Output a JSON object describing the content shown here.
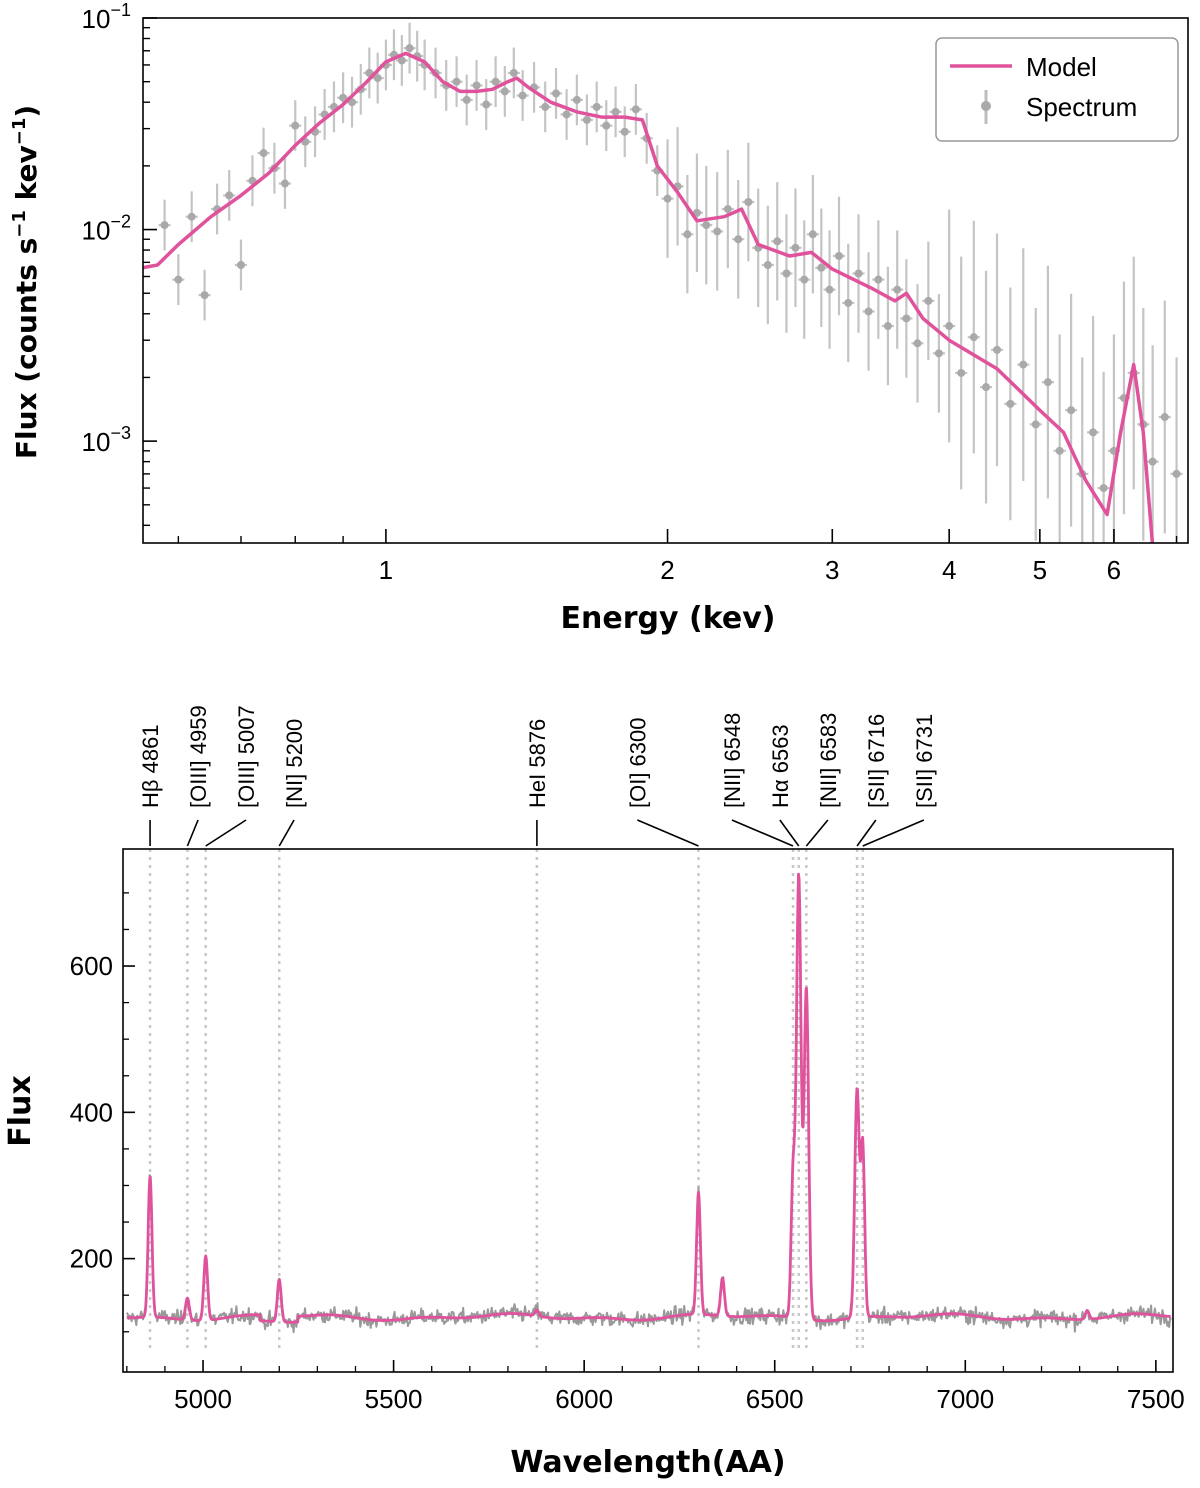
{
  "chart_data": [
    {
      "type": "scatter",
      "name": "xray-spectrum",
      "xscale": "log",
      "yscale": "log",
      "xlim": [
        0.55,
        7.2
      ],
      "ylim": [
        0.00033,
        0.1
      ],
      "xlabel": "Energy (kev)",
      "ylabel_parts": {
        "prefix": "Flux (counts s",
        "exp1": "−1",
        "mid": " kev",
        "exp2": "−1",
        "suffix": ")"
      },
      "xticks": [
        {
          "value": 1,
          "label": "1"
        },
        {
          "value": 2,
          "label": "2"
        },
        {
          "value": 3,
          "label": "3"
        },
        {
          "value": 4,
          "label": "4"
        },
        {
          "value": 5,
          "label": "5"
        },
        {
          "value": 6,
          "label": "6"
        }
      ],
      "yticks": [
        {
          "value": 0.1,
          "base": "10",
          "exp": "−1"
        },
        {
          "value": 0.01,
          "base": "10",
          "exp": "−2"
        },
        {
          "value": 0.001,
          "base": "10",
          "exp": "−3"
        }
      ],
      "legend": {
        "position": "top-right",
        "entries": [
          {
            "label": "Model",
            "kind": "line",
            "color": "#e0529c"
          },
          {
            "label": "Spectrum",
            "kind": "errorbar",
            "color": "#a9a9a9"
          }
        ]
      },
      "model": {
        "name": "Model",
        "color": "#e0529c",
        "points": [
          [
            0.55,
            0.0066
          ],
          [
            0.57,
            0.0068
          ],
          [
            0.6,
            0.0085
          ],
          [
            0.65,
            0.0115
          ],
          [
            0.7,
            0.0145
          ],
          [
            0.75,
            0.0185
          ],
          [
            0.8,
            0.025
          ],
          [
            0.85,
            0.032
          ],
          [
            0.9,
            0.039
          ],
          [
            0.95,
            0.049
          ],
          [
            1.0,
            0.062
          ],
          [
            1.05,
            0.068
          ],
          [
            1.1,
            0.062
          ],
          [
            1.15,
            0.05
          ],
          [
            1.2,
            0.045
          ],
          [
            1.25,
            0.045
          ],
          [
            1.3,
            0.046
          ],
          [
            1.35,
            0.05
          ],
          [
            1.38,
            0.052
          ],
          [
            1.42,
            0.047
          ],
          [
            1.5,
            0.04
          ],
          [
            1.6,
            0.036
          ],
          [
            1.7,
            0.034
          ],
          [
            1.8,
            0.034
          ],
          [
            1.88,
            0.033
          ],
          [
            1.95,
            0.02
          ],
          [
            2.05,
            0.015
          ],
          [
            2.15,
            0.011
          ],
          [
            2.3,
            0.0115
          ],
          [
            2.4,
            0.0125
          ],
          [
            2.5,
            0.0085
          ],
          [
            2.7,
            0.0075
          ],
          [
            2.85,
            0.0078
          ],
          [
            3.0,
            0.0065
          ],
          [
            3.3,
            0.0053
          ],
          [
            3.5,
            0.0046
          ],
          [
            3.6,
            0.005
          ],
          [
            3.75,
            0.0038
          ],
          [
            4.0,
            0.003
          ],
          [
            4.5,
            0.0022
          ],
          [
            5.0,
            0.0014
          ],
          [
            5.3,
            0.0011
          ],
          [
            5.6,
            0.00065
          ],
          [
            5.9,
            0.00045
          ],
          [
            6.1,
            0.0011
          ],
          [
            6.3,
            0.0023
          ],
          [
            6.45,
            0.0011
          ],
          [
            6.6,
            0.00032
          ]
        ]
      },
      "spectrum": {
        "name": "Spectrum",
        "color": "#a9a9a9",
        "points": [
          [
            0.58,
            0.0105
          ],
          [
            0.6,
            0.0058
          ],
          [
            0.62,
            0.0115
          ],
          [
            0.64,
            0.0049
          ],
          [
            0.66,
            0.0125
          ],
          [
            0.68,
            0.0145
          ],
          [
            0.7,
            0.0068
          ],
          [
            0.72,
            0.017
          ],
          [
            0.74,
            0.023
          ],
          [
            0.76,
            0.0195
          ],
          [
            0.78,
            0.0165
          ],
          [
            0.8,
            0.031
          ],
          [
            0.82,
            0.026
          ],
          [
            0.84,
            0.029
          ],
          [
            0.86,
            0.035
          ],
          [
            0.88,
            0.038
          ],
          [
            0.9,
            0.042
          ],
          [
            0.92,
            0.04
          ],
          [
            0.94,
            0.046
          ],
          [
            0.96,
            0.055
          ],
          [
            0.98,
            0.052
          ],
          [
            1.0,
            0.06
          ],
          [
            1.02,
            0.067
          ],
          [
            1.04,
            0.063
          ],
          [
            1.06,
            0.072
          ],
          [
            1.08,
            0.066
          ],
          [
            1.1,
            0.06
          ],
          [
            1.13,
            0.055
          ],
          [
            1.16,
            0.048
          ],
          [
            1.19,
            0.05
          ],
          [
            1.22,
            0.041
          ],
          [
            1.25,
            0.048
          ],
          [
            1.28,
            0.039
          ],
          [
            1.31,
            0.05
          ],
          [
            1.34,
            0.045
          ],
          [
            1.37,
            0.055
          ],
          [
            1.4,
            0.043
          ],
          [
            1.44,
            0.047
          ],
          [
            1.48,
            0.038
          ],
          [
            1.52,
            0.044
          ],
          [
            1.56,
            0.035
          ],
          [
            1.6,
            0.041
          ],
          [
            1.64,
            0.033
          ],
          [
            1.68,
            0.038
          ],
          [
            1.72,
            0.031
          ],
          [
            1.76,
            0.036
          ],
          [
            1.8,
            0.029
          ],
          [
            1.85,
            0.037
          ],
          [
            1.9,
            0.027
          ],
          [
            1.95,
            0.019
          ],
          [
            2.0,
            0.014
          ],
          [
            2.05,
            0.016
          ],
          [
            2.1,
            0.0095
          ],
          [
            2.15,
            0.012
          ],
          [
            2.2,
            0.0105
          ],
          [
            2.26,
            0.0098
          ],
          [
            2.32,
            0.0125
          ],
          [
            2.38,
            0.009
          ],
          [
            2.44,
            0.0135
          ],
          [
            2.5,
            0.0082
          ],
          [
            2.56,
            0.0068
          ],
          [
            2.62,
            0.0088
          ],
          [
            2.68,
            0.0062
          ],
          [
            2.74,
            0.0082
          ],
          [
            2.8,
            0.0058
          ],
          [
            2.86,
            0.0095
          ],
          [
            2.92,
            0.0066
          ],
          [
            2.98,
            0.0052
          ],
          [
            3.05,
            0.0075
          ],
          [
            3.12,
            0.0045
          ],
          [
            3.2,
            0.0062
          ],
          [
            3.28,
            0.0041
          ],
          [
            3.36,
            0.0058
          ],
          [
            3.44,
            0.0035
          ],
          [
            3.52,
            0.0052
          ],
          [
            3.6,
            0.0038
          ],
          [
            3.7,
            0.0029
          ],
          [
            3.8,
            0.0046
          ],
          [
            3.9,
            0.0026
          ],
          [
            4.0,
            0.0035
          ],
          [
            4.12,
            0.0021
          ],
          [
            4.25,
            0.0031
          ],
          [
            4.38,
            0.0018
          ],
          [
            4.5,
            0.0027
          ],
          [
            4.65,
            0.0015
          ],
          [
            4.8,
            0.0023
          ],
          [
            4.95,
            0.0012
          ],
          [
            5.1,
            0.0019
          ],
          [
            5.25,
            0.0009
          ],
          [
            5.4,
            0.0014
          ],
          [
            5.55,
            0.0007
          ],
          [
            5.7,
            0.0011
          ],
          [
            5.85,
            0.0006
          ],
          [
            6.0,
            0.0009
          ],
          [
            6.15,
            0.0016
          ],
          [
            6.3,
            0.0021
          ],
          [
            6.45,
            0.0012
          ],
          [
            6.6,
            0.0008
          ],
          [
            6.8,
            0.0013
          ],
          [
            7.0,
            0.0007
          ]
        ]
      }
    },
    {
      "type": "line",
      "name": "optical-spectrum",
      "xlim": [
        4790,
        7545
      ],
      "ylim": [
        45,
        760
      ],
      "xlabel": "Wavelength(AA)",
      "ylabel": "Flux",
      "xticks": [
        5000,
        5500,
        6000,
        6500,
        7000,
        7500
      ],
      "yticks": [
        200,
        400,
        600
      ],
      "continuum": 120,
      "series": [
        {
          "name": "Spectrum",
          "color": "#999999"
        },
        {
          "name": "Model",
          "color": "#e0529c"
        }
      ],
      "emission_lines": [
        {
          "label": "Hβ 4861",
          "wavelength": 4861,
          "peak": 313
        },
        {
          "label": "[OIII] 4959",
          "wavelength": 4959,
          "peak": 150
        },
        {
          "label": "[OIII] 5007",
          "wavelength": 5007,
          "peak": 208
        },
        {
          "label": "[NI] 5200",
          "wavelength": 5200,
          "peak": 178
        },
        {
          "label": "HeI 5876",
          "wavelength": 5876,
          "peak": 128
        },
        {
          "label": "[OI] 6300",
          "wavelength": 6300,
          "peak": 287
        },
        {
          "label": "[NII] 6548",
          "wavelength": 6548,
          "peak": 310
        },
        {
          "label": "Hα 6563",
          "wavelength": 6563,
          "peak": 725
        },
        {
          "label": "[NII] 6583",
          "wavelength": 6583,
          "peak": 573
        },
        {
          "label": "[SII] 6716",
          "wavelength": 6716,
          "peak": 432
        },
        {
          "label": "[SII] 6731",
          "wavelength": 6731,
          "peak": 350
        }
      ],
      "other_features": [
        {
          "wavelength": 6363,
          "peak": 172
        },
        {
          "wavelength": 7320,
          "peak": 132
        }
      ]
    }
  ]
}
